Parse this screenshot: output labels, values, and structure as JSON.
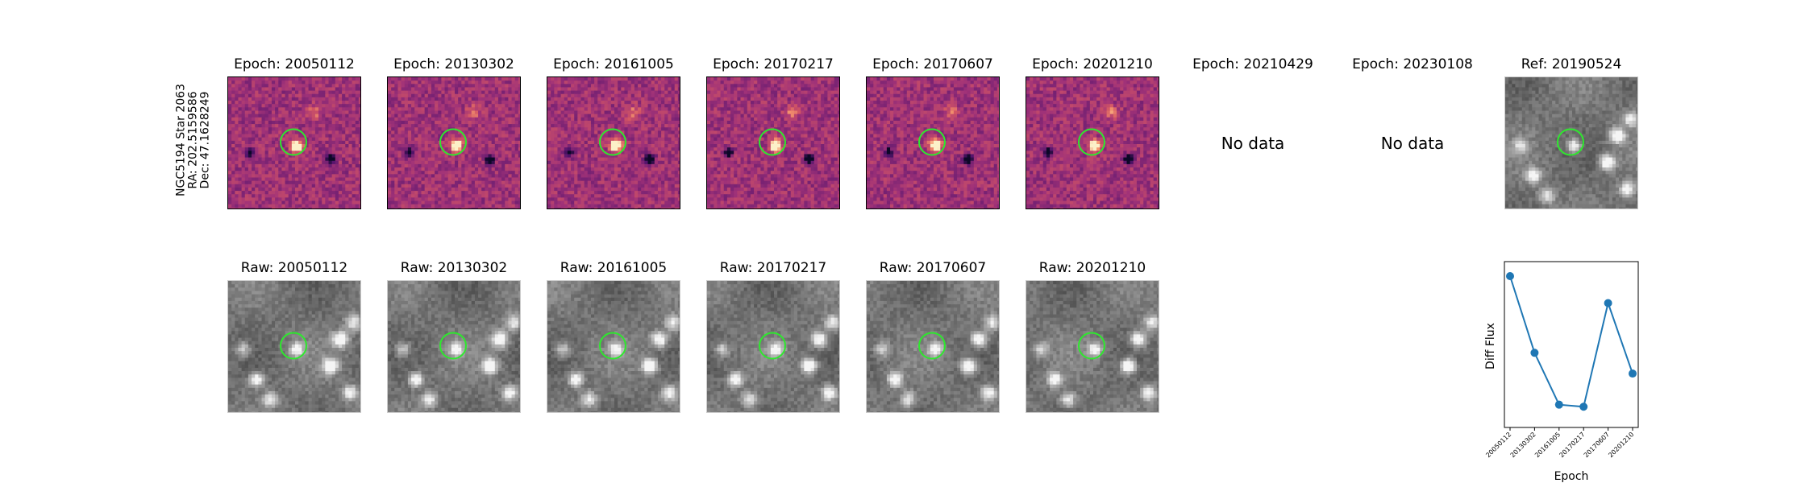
{
  "star_label": {
    "line1": "NGC5194 Star 2063",
    "line2": "RA: 202.5159586",
    "line3": "Dec: 47.1628249"
  },
  "diff_panels": [
    {
      "title": "Epoch: 20050112",
      "has_data": true
    },
    {
      "title": "Epoch: 20130302",
      "has_data": true
    },
    {
      "title": "Epoch: 20161005",
      "has_data": true
    },
    {
      "title": "Epoch: 20170217",
      "has_data": true
    },
    {
      "title": "Epoch: 20170607",
      "has_data": true
    },
    {
      "title": "Epoch: 20201210",
      "has_data": true
    },
    {
      "title": "Epoch: 20210429",
      "has_data": false,
      "message": "No data"
    },
    {
      "title": "Epoch: 20230108",
      "has_data": false,
      "message": "No data"
    },
    {
      "title": "Ref: 20190524",
      "has_data": true,
      "kind": "reference"
    }
  ],
  "raw_panels": [
    {
      "title": "Raw: 20050112"
    },
    {
      "title": "Raw: 20130302"
    },
    {
      "title": "Raw: 20161005"
    },
    {
      "title": "Raw: 20170217"
    },
    {
      "title": "Raw: 20170607"
    },
    {
      "title": "Raw: 20201210"
    }
  ],
  "colors": {
    "target_circle": "#2ee82e",
    "series": "#1f77b4",
    "diff_colormap": "magma",
    "raw_colormap": "gray"
  },
  "chart_data": {
    "type": "line",
    "title": "",
    "xlabel": "Epoch",
    "ylabel": "Diff Flux",
    "categories": [
      "20050112",
      "20130302",
      "20161005",
      "20170217",
      "20170607",
      "20201210"
    ],
    "series": [
      {
        "values": [
          0.95,
          0.58,
          0.33,
          0.32,
          0.82,
          0.48
        ]
      }
    ],
    "ylim": [
      0.22,
      1.02
    ],
    "y_ticks_shown": false,
    "grid": false,
    "legend": "none"
  }
}
